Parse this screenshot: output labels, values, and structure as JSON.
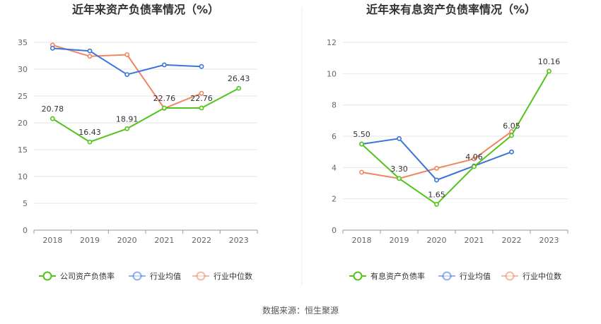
{
  "source": "数据来源：恒生聚源",
  "chart_data": [
    {
      "type": "line",
      "title": "近年来资产负债率情况（%）",
      "categories": [
        "2018",
        "2019",
        "2020",
        "2021",
        "2022",
        "2023"
      ],
      "ylim": [
        0,
        35
      ],
      "yticks": [
        0,
        5,
        10,
        15,
        20,
        25,
        30,
        35
      ],
      "grid": true,
      "legend_position": "bottom",
      "series": [
        {
          "name": "公司资产负债率",
          "color": "#52c41a",
          "values": [
            20.78,
            16.43,
            18.91,
            22.76,
            22.76,
            26.43
          ],
          "labels": [
            "20.78",
            "16.43",
            "18.91",
            "22.76",
            "22.76",
            "26.43"
          ]
        },
        {
          "name": "行业均值",
          "color": "#3a74d9",
          "values": [
            33.9,
            33.4,
            29.0,
            30.8,
            30.5,
            null
          ]
        },
        {
          "name": "行业中位数",
          "color": "#f0855f",
          "values": [
            34.5,
            32.4,
            32.7,
            22.7,
            25.5,
            null
          ]
        }
      ]
    },
    {
      "type": "line",
      "title": "近年来有息资产负债率情况（%）",
      "categories": [
        "2018",
        "2019",
        "2020",
        "2021",
        "2022",
        "2023"
      ],
      "ylim": [
        0,
        12
      ],
      "yticks": [
        0,
        2,
        4,
        6,
        8,
        10,
        12
      ],
      "grid": true,
      "legend_position": "bottom",
      "series": [
        {
          "name": "有息资产负债率",
          "color": "#52c41a",
          "values": [
            5.5,
            3.3,
            1.65,
            4.06,
            6.05,
            10.16
          ],
          "labels": [
            "5.50",
            "3.30",
            "1.65",
            "4.06",
            "6.05",
            "10.16"
          ]
        },
        {
          "name": "行业均值",
          "color": "#3a74d9",
          "values": [
            5.5,
            5.85,
            3.2,
            4.1,
            5.0,
            null
          ]
        },
        {
          "name": "行业中位数",
          "color": "#f0855f",
          "values": [
            3.7,
            3.3,
            3.95,
            4.55,
            6.3,
            null
          ]
        }
      ]
    }
  ]
}
